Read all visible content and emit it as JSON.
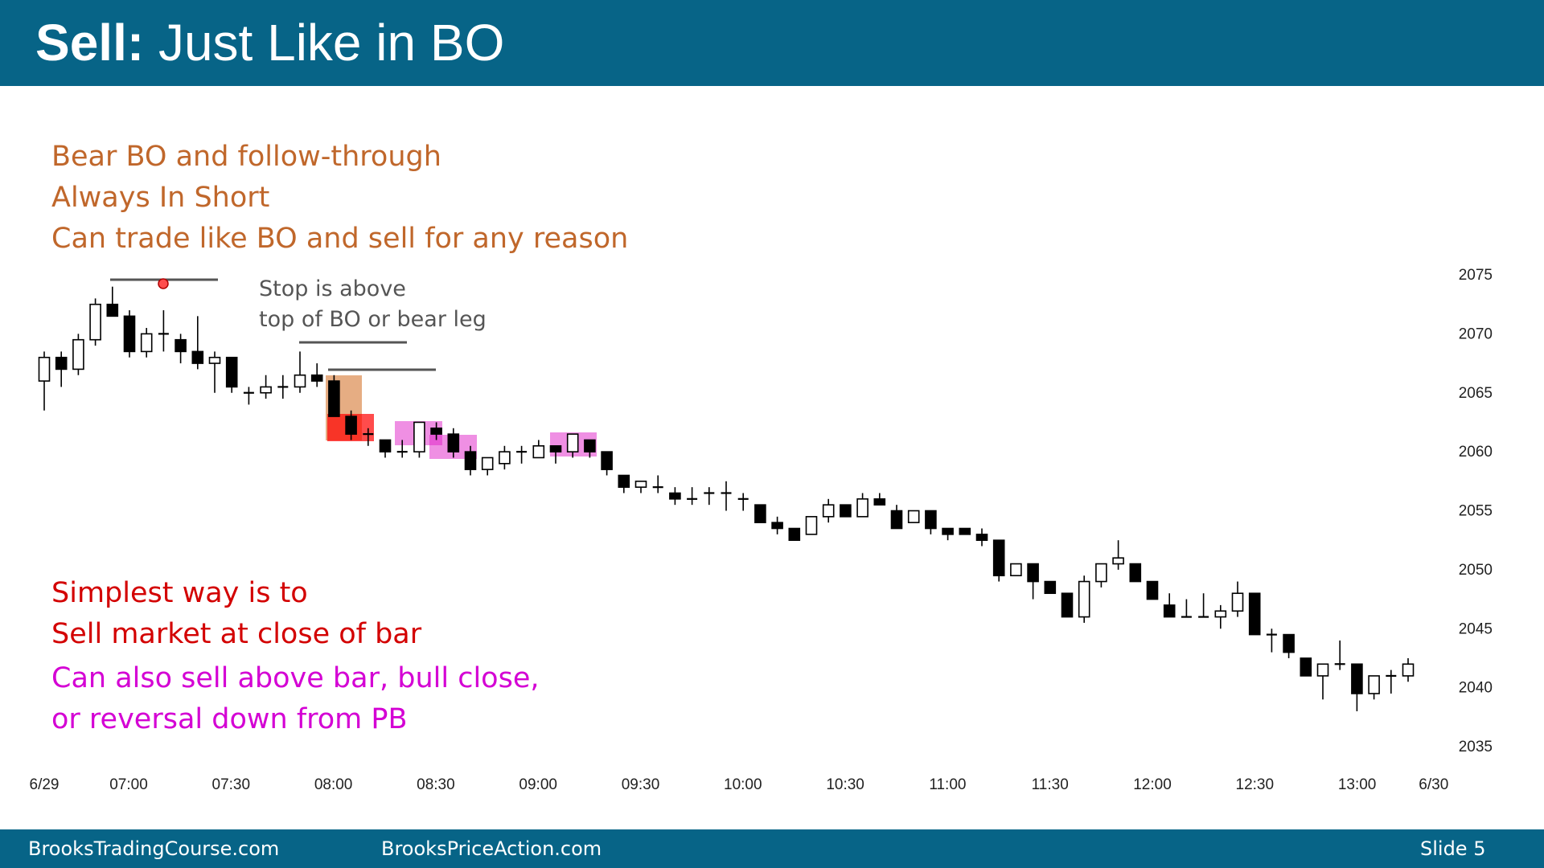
{
  "header": {
    "title_bold": "Sell:",
    "title_rest": " Just Like in BO"
  },
  "annotations": {
    "brown": [
      "Bear BO and follow-through",
      "Always In Short",
      "Can trade like BO and sell for any reason"
    ],
    "stop": [
      "Stop is above",
      "top of BO or bear leg"
    ],
    "red": [
      "Simplest way is to",
      "Sell market at close of bar"
    ],
    "magenta": [
      "Can also sell above bar, bull close,",
      "or reversal down from PB"
    ]
  },
  "footer": {
    "left": "BrooksTradingCourse.com",
    "middle": "BrooksPriceAction.com",
    "right": "Slide  5"
  },
  "colors": {
    "header_bg": "#076487",
    "brown_text": "#c0672b",
    "red_text": "#d30000",
    "magenta_text": "#d400d4",
    "bo_box": "#d2691e",
    "red_box": "#ff0000",
    "pink_box": "#e020c8"
  },
  "chart_data": {
    "type": "candlestick",
    "x_ticks": [
      "6/29",
      "07:00",
      "07:30",
      "08:00",
      "08:30",
      "09:00",
      "09:30",
      "10:00",
      "10:30",
      "11:00",
      "11:30",
      "12:00",
      "12:30",
      "13:00",
      "6/30"
    ],
    "y_ticks": [
      "2075",
      "2070",
      "2065",
      "2060",
      "2055",
      "2050",
      "2045",
      "2040",
      "2035"
    ],
    "ylim": [
      2035,
      2075
    ],
    "grid": false,
    "bars": [
      [
        2066.0,
        2068.5,
        2063.5,
        2068.0
      ],
      [
        2068.0,
        2068.5,
        2065.5,
        2067.0
      ],
      [
        2067.0,
        2070.0,
        2066.5,
        2069.5
      ],
      [
        2069.5,
        2073.0,
        2069.0,
        2072.5
      ],
      [
        2072.5,
        2074.0,
        2071.5,
        2071.5
      ],
      [
        2071.5,
        2072.0,
        2068.0,
        2068.5
      ],
      [
        2068.5,
        2070.5,
        2068.0,
        2070.0
      ],
      [
        2070.0,
        2072.0,
        2068.5,
        2070.0
      ],
      [
        2069.5,
        2070.0,
        2067.5,
        2068.5
      ],
      [
        2068.5,
        2071.5,
        2067.0,
        2067.5
      ],
      [
        2067.5,
        2068.5,
        2065.0,
        2068.0
      ],
      [
        2068.0,
        2068.0,
        2065.0,
        2065.5
      ],
      [
        2065.0,
        2065.5,
        2064.0,
        2065.0
      ],
      [
        2065.0,
        2066.5,
        2064.5,
        2065.5
      ],
      [
        2065.5,
        2066.5,
        2064.5,
        2065.5
      ],
      [
        2065.5,
        2068.5,
        2065.0,
        2066.5
      ],
      [
        2066.5,
        2067.5,
        2065.5,
        2066.0
      ],
      [
        2066.0,
        2066.5,
        2063.0,
        2063.0
      ],
      [
        2063.0,
        2063.5,
        2061.0,
        2061.5
      ],
      [
        2061.5,
        2062.0,
        2060.5,
        2061.5
      ],
      [
        2061.0,
        2061.0,
        2059.5,
        2060.0
      ],
      [
        2060.0,
        2061.0,
        2059.5,
        2060.0
      ],
      [
        2060.0,
        2062.5,
        2059.5,
        2062.5
      ],
      [
        2062.0,
        2062.5,
        2061.0,
        2061.5
      ],
      [
        2061.5,
        2062.0,
        2059.5,
        2060.0
      ],
      [
        2060.0,
        2060.5,
        2058.0,
        2058.5
      ],
      [
        2058.5,
        2059.5,
        2058.0,
        2059.5
      ],
      [
        2059.0,
        2060.5,
        2058.5,
        2060.0
      ],
      [
        2060.0,
        2060.5,
        2059.0,
        2060.0
      ],
      [
        2059.5,
        2061.0,
        2059.5,
        2060.5
      ],
      [
        2060.5,
        2060.5,
        2059.0,
        2060.0
      ],
      [
        2060.0,
        2061.5,
        2059.5,
        2061.5
      ],
      [
        2061.0,
        2061.0,
        2059.5,
        2060.0
      ],
      [
        2060.0,
        2060.0,
        2058.0,
        2058.5
      ],
      [
        2058.0,
        2058.0,
        2056.5,
        2057.0
      ],
      [
        2057.0,
        2057.5,
        2056.5,
        2057.5
      ],
      [
        2057.0,
        2058.0,
        2056.5,
        2057.0
      ],
      [
        2056.5,
        2057.0,
        2055.5,
        2056.0
      ],
      [
        2056.0,
        2057.0,
        2055.5,
        2056.0
      ],
      [
        2056.5,
        2057.0,
        2055.5,
        2056.5
      ],
      [
        2056.5,
        2057.5,
        2055.0,
        2056.5
      ],
      [
        2056.0,
        2056.5,
        2055.0,
        2056.0
      ],
      [
        2055.5,
        2055.5,
        2054.0,
        2054.0
      ],
      [
        2054.0,
        2054.5,
        2053.0,
        2053.5
      ],
      [
        2053.5,
        2053.5,
        2052.5,
        2052.5
      ],
      [
        2053.0,
        2054.5,
        2053.0,
        2054.5
      ],
      [
        2054.5,
        2056.0,
        2054.0,
        2055.5
      ],
      [
        2055.5,
        2055.5,
        2054.5,
        2054.5
      ],
      [
        2054.5,
        2056.5,
        2054.5,
        2056.0
      ],
      [
        2056.0,
        2056.5,
        2055.5,
        2055.5
      ],
      [
        2055.0,
        2055.5,
        2053.5,
        2053.5
      ],
      [
        2054.0,
        2055.0,
        2054.0,
        2055.0
      ],
      [
        2055.0,
        2055.0,
        2053.0,
        2053.5
      ],
      [
        2053.5,
        2053.5,
        2052.5,
        2053.0
      ],
      [
        2053.5,
        2053.5,
        2053.0,
        2053.0
      ],
      [
        2053.0,
        2053.5,
        2052.0,
        2052.5
      ],
      [
        2052.5,
        2052.5,
        2049.0,
        2049.5
      ],
      [
        2049.5,
        2050.5,
        2049.5,
        2050.5
      ],
      [
        2050.5,
        2050.5,
        2047.5,
        2049.0
      ],
      [
        2049.0,
        2049.0,
        2048.0,
        2048.0
      ],
      [
        2048.0,
        2048.0,
        2046.0,
        2046.0
      ],
      [
        2046.0,
        2049.5,
        2045.5,
        2049.0
      ],
      [
        2049.0,
        2050.5,
        2048.5,
        2050.5
      ],
      [
        2050.5,
        2052.5,
        2050.0,
        2051.0
      ],
      [
        2050.5,
        2050.5,
        2049.0,
        2049.0
      ],
      [
        2049.0,
        2049.0,
        2047.5,
        2047.5
      ],
      [
        2047.0,
        2048.0,
        2046.0,
        2046.0
      ],
      [
        2046.0,
        2047.5,
        2046.0,
        2046.0
      ],
      [
        2046.0,
        2048.0,
        2046.0,
        2046.0
      ],
      [
        2046.0,
        2047.0,
        2045.0,
        2046.5
      ],
      [
        2046.5,
        2049.0,
        2046.0,
        2048.0
      ],
      [
        2048.0,
        2048.0,
        2044.5,
        2044.5
      ],
      [
        2044.5,
        2045.0,
        2043.0,
        2044.5
      ],
      [
        2044.5,
        2044.5,
        2042.5,
        2043.0
      ],
      [
        2042.5,
        2042.5,
        2041.0,
        2041.0
      ],
      [
        2041.0,
        2042.0,
        2039.0,
        2042.0
      ],
      [
        2042.0,
        2044.0,
        2041.5,
        2042.0
      ],
      [
        2042.0,
        2042.0,
        2038.0,
        2039.5
      ],
      [
        2039.5,
        2041.0,
        2039.0,
        2041.0
      ],
      [
        2041.0,
        2041.5,
        2039.5,
        2041.0
      ],
      [
        2041.0,
        2042.5,
        2040.5,
        2042.0
      ]
    ]
  }
}
